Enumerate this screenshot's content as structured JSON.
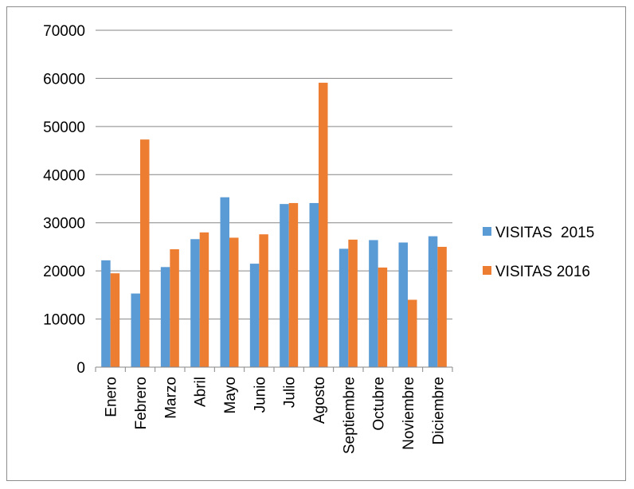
{
  "chart_data": {
    "type": "bar",
    "title": "",
    "xlabel": "",
    "ylabel": "",
    "categories": [
      "Enero",
      "Febrero",
      "Marzo",
      "Abril",
      "Mayo",
      "Junio",
      "Julio",
      "Agosto",
      "Septiembre",
      "Octubre",
      "Noviembre",
      "Diciembre"
    ],
    "series": [
      {
        "name": "VISITAS  2015",
        "color": "#5B9BD5",
        "values": [
          22200,
          15300,
          20800,
          26600,
          35300,
          21500,
          33900,
          34100,
          24600,
          26400,
          25900,
          27200
        ]
      },
      {
        "name": "VISITAS 2016",
        "color": "#ED7D31",
        "values": [
          19500,
          47300,
          24500,
          28000,
          26900,
          27600,
          34100,
          59100,
          26500,
          20700,
          14000,
          25000
        ]
      }
    ],
    "ylim": [
      0,
      70000
    ],
    "yticks": [
      "0",
      "10000",
      "20000",
      "30000",
      "40000",
      "50000",
      "60000",
      "70000"
    ],
    "grid": true,
    "legend_position": "right"
  }
}
